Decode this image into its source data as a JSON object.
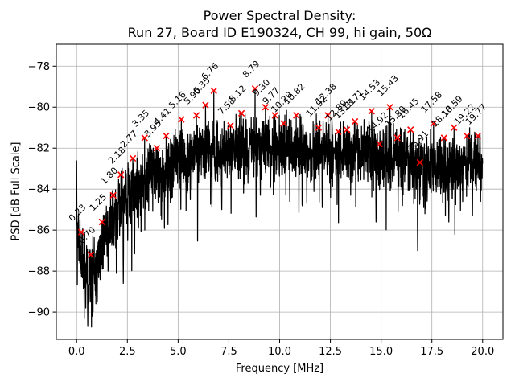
{
  "chart_data": {
    "type": "line",
    "title_line1": "Power Spectral Density:",
    "title_line2": "Run 27, Board ID E190324, CH 99, hi gain, 50Ω",
    "xlabel": "Frequency [MHz]",
    "ylabel": "PSD [dB Full Scale]",
    "xlim": [
      -1,
      21
    ],
    "ylim": [
      -91.33,
      -76.93
    ],
    "xticks": [
      0,
      2.5,
      5,
      7.5,
      10,
      12.5,
      15,
      17.5,
      20
    ],
    "xtick_labels": [
      "0.0",
      "2.5",
      "5.0",
      "7.5",
      "10.0",
      "12.5",
      "15.0",
      "17.5",
      "20.0"
    ],
    "yticks": [
      -78,
      -80,
      -82,
      -84,
      -86,
      -88,
      -90
    ],
    "ytick_labels": [
      "−78",
      "−80",
      "−82",
      "−84",
      "−86",
      "−88",
      "−90"
    ],
    "grid": true,
    "legend": "none",
    "line_color": "#000000",
    "marker_color": "#ff0000",
    "marker_style": "x",
    "grid_color": "#b0b0b0",
    "peaks": [
      {
        "f": 0.23,
        "db": -86.1,
        "label": "0.23"
      },
      {
        "f": 0.7,
        "db": -87.2,
        "label": "0.70"
      },
      {
        "f": 1.25,
        "db": -85.6,
        "label": "1.25"
      },
      {
        "f": 1.8,
        "db": -84.3,
        "label": "1.80"
      },
      {
        "f": 2.18,
        "db": -83.3,
        "label": "2.18"
      },
      {
        "f": 2.77,
        "db": -82.5,
        "label": "2.77"
      },
      {
        "f": 3.35,
        "db": -81.5,
        "label": "3.35"
      },
      {
        "f": 3.95,
        "db": -82.0,
        "label": "3.95"
      },
      {
        "f": 4.41,
        "db": -81.4,
        "label": "4.41"
      },
      {
        "f": 5.16,
        "db": -80.6,
        "label": "5.16"
      },
      {
        "f": 5.9,
        "db": -80.4,
        "label": "5.90"
      },
      {
        "f": 6.35,
        "db": -79.9,
        "label": "6.35"
      },
      {
        "f": 6.76,
        "db": -79.2,
        "label": "6.76"
      },
      {
        "f": 7.58,
        "db": -80.9,
        "label": "7.58"
      },
      {
        "f": 8.12,
        "db": -80.3,
        "label": "8.12"
      },
      {
        "f": 8.79,
        "db": -79.1,
        "label": "8.79"
      },
      {
        "f": 9.3,
        "db": -80.0,
        "label": "9.30"
      },
      {
        "f": 9.77,
        "db": -80.4,
        "label": "9.77"
      },
      {
        "f": 10.2,
        "db": -80.8,
        "label": "10.20"
      },
      {
        "f": 10.82,
        "db": -80.4,
        "label": "10.82"
      },
      {
        "f": 11.92,
        "db": -81.0,
        "label": "11.92"
      },
      {
        "f": 12.38,
        "db": -80.4,
        "label": "12.38"
      },
      {
        "f": 12.89,
        "db": -81.2,
        "label": "12.89"
      },
      {
        "f": 13.31,
        "db": -81.1,
        "label": "13.31"
      },
      {
        "f": 13.71,
        "db": -80.7,
        "label": "13.71"
      },
      {
        "f": 14.53,
        "db": -80.2,
        "label": "14.53"
      },
      {
        "f": 14.92,
        "db": -81.8,
        "label": "14.92"
      },
      {
        "f": 15.43,
        "db": -80.0,
        "label": "15.43"
      },
      {
        "f": 15.8,
        "db": -81.5,
        "label": "15.80"
      },
      {
        "f": 16.45,
        "db": -81.1,
        "label": "16.45"
      },
      {
        "f": 16.91,
        "db": -82.7,
        "label": "16.91"
      },
      {
        "f": 17.58,
        "db": -80.8,
        "label": "17.58"
      },
      {
        "f": 18.1,
        "db": -81.5,
        "label": "18.10"
      },
      {
        "f": 18.59,
        "db": -81.0,
        "label": "18.59"
      },
      {
        "f": 19.22,
        "db": -81.4,
        "label": "19.22"
      },
      {
        "f": 19.77,
        "db": -81.4,
        "label": "19.77"
      }
    ],
    "noise_envelope_center": [
      [
        0.0,
        -85.5
      ],
      [
        0.3,
        -87.5
      ],
      [
        0.6,
        -88.3
      ],
      [
        0.9,
        -87.8
      ],
      [
        1.3,
        -86.6
      ],
      [
        1.8,
        -85.3
      ],
      [
        2.3,
        -84.6
      ],
      [
        3.0,
        -83.8
      ],
      [
        4.0,
        -83.2
      ],
      [
        5.0,
        -82.6
      ],
      [
        6.0,
        -82.2
      ],
      [
        7.0,
        -82.1
      ],
      [
        8.0,
        -81.9
      ],
      [
        9.0,
        -81.8
      ],
      [
        10.0,
        -81.9
      ],
      [
        11.0,
        -82.0
      ],
      [
        12.0,
        -82.1
      ],
      [
        13.0,
        -82.1
      ],
      [
        14.0,
        -82.0
      ],
      [
        15.0,
        -82.2
      ],
      [
        16.0,
        -82.6
      ],
      [
        17.0,
        -82.7
      ],
      [
        18.0,
        -82.9
      ],
      [
        19.0,
        -82.7
      ],
      [
        20.0,
        -82.6
      ]
    ],
    "noise_amplitude_db": 1.8,
    "dc_spike_db": -82.6,
    "dips": [
      [
        0.45,
        -89.8
      ],
      [
        0.55,
        -90.7
      ],
      [
        0.78,
        -90.2
      ],
      [
        1.02,
        -89.5
      ],
      [
        1.55,
        -88.0
      ],
      [
        2.3,
        -88.6
      ],
      [
        3.05,
        -85.9
      ],
      [
        4.2,
        -84.6
      ],
      [
        7.15,
        -85.0
      ],
      [
        9.05,
        -84.3
      ],
      [
        10.5,
        -84.6
      ],
      [
        12.1,
        -84.9
      ],
      [
        13.5,
        -84.3
      ],
      [
        14.75,
        -85.6
      ],
      [
        16.05,
        -84.8
      ],
      [
        16.8,
        -87.0
      ],
      [
        17.1,
        -84.9
      ],
      [
        18.33,
        -85.6
      ],
      [
        19.5,
        -85.3
      ],
      [
        19.9,
        -84.6
      ]
    ],
    "seed": 27,
    "points_per_mhz": 120
  }
}
